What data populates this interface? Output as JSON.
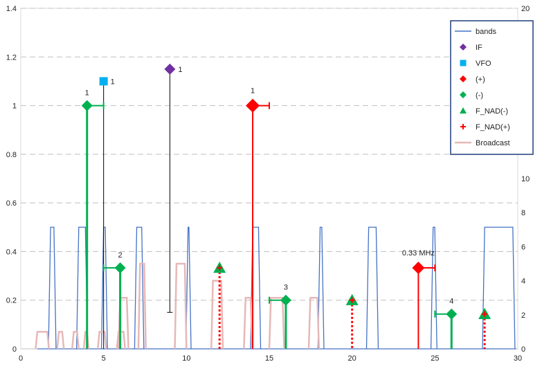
{
  "chart_data": {
    "type": "line",
    "x_axis": {
      "min": 0,
      "max": 30,
      "ticks": [
        0,
        5,
        10,
        15,
        20,
        25,
        30
      ]
    },
    "y_left": {
      "min": 0,
      "max": 1.4,
      "ticks": [
        0,
        0.2,
        0.4,
        0.6,
        0.8,
        1,
        1.2,
        1.4
      ]
    },
    "y_right": {
      "min": 0,
      "max": 20,
      "ticks": [
        0,
        2,
        4,
        6,
        8,
        10,
        12,
        14,
        16,
        18,
        20
      ]
    },
    "grid": "horizontal dashed",
    "legend_position": "top-right",
    "colors": {
      "bands": "#4472c4",
      "IF": "#7030a0",
      "VFO": "#00b0f0",
      "plus": "#ff0000",
      "minus": "#00b050",
      "broadcast": "#e6b8b7",
      "fnad_plus": "#ff0000"
    },
    "legend": [
      {
        "label": "bands",
        "marker": "line",
        "color": "#4472c4"
      },
      {
        "label": "IF",
        "marker": "diamond",
        "color": "#7030a0"
      },
      {
        "label": "VFO",
        "marker": "square",
        "color": "#00b0f0"
      },
      {
        "label": "(+)",
        "marker": "diamond",
        "color": "#ff0000"
      },
      {
        "label": "(-)",
        "marker": "diamond",
        "color": "#00b050"
      },
      {
        "label": "F_NAD(-)",
        "marker": "triangle",
        "color": "#00b050"
      },
      {
        "label": "F_NAD(+)",
        "marker": "plus",
        "color": "#ff0000"
      },
      {
        "label": "Broadcast",
        "marker": "line",
        "color": "#e6b8b7"
      }
    ],
    "bands": [
      {
        "start": 1.8,
        "end": 2.0
      },
      {
        "start": 3.5,
        "end": 3.9
      },
      {
        "start": 5.0,
        "end": 5.1
      },
      {
        "start": 7.0,
        "end": 7.3
      },
      {
        "start": 10.1,
        "end": 10.15
      },
      {
        "start": 14.0,
        "end": 14.35
      },
      {
        "start": 18.07,
        "end": 18.17
      },
      {
        "start": 21.0,
        "end": 21.45
      },
      {
        "start": 24.89,
        "end": 24.99
      },
      {
        "start": 28.0,
        "end": 29.7
      }
    ],
    "bands_level": 0.5,
    "broadcast": [
      {
        "start": 1.0,
        "end": 1.6,
        "level": 0.07
      },
      {
        "start": 2.3,
        "end": 2.5,
        "level": 0.07
      },
      {
        "start": 3.2,
        "end": 3.4,
        "level": 0.07
      },
      {
        "start": 3.9,
        "end": 4.0,
        "level": 0.07
      },
      {
        "start": 4.75,
        "end": 5.06,
        "level": 0.07
      },
      {
        "start": 5.9,
        "end": 6.2,
        "level": 0.07
      },
      {
        "start": 7.2,
        "end": 7.45,
        "level": 0.35
      },
      {
        "start": 9.4,
        "end": 9.9,
        "level": 0.35
      },
      {
        "start": 11.6,
        "end": 12.1,
        "level": 0.28
      },
      {
        "start": 13.57,
        "end": 13.87,
        "level": 0.21
      },
      {
        "start": 15.1,
        "end": 15.8,
        "level": 0.21
      },
      {
        "start": 17.48,
        "end": 17.9,
        "level": 0.21
      },
      {
        "start": 6.0,
        "end": 6.4,
        "level": 0.21
      }
    ],
    "series_points": {
      "IF": [
        {
          "x": 9,
          "y": 1.15,
          "low": 0.15,
          "label": "1"
        }
      ],
      "VFO": [
        {
          "x": 5,
          "y": 1.1,
          "low": 0.0,
          "label": "1"
        }
      ],
      "plus": [
        {
          "x": 14,
          "y": 1.0,
          "err_x": 1.0,
          "label": "1"
        },
        {
          "x": 24,
          "y": 0.333,
          "err_x": 1.0,
          "label": "0.33 MHz"
        }
      ],
      "minus": [
        {
          "x": 4,
          "y": 1.0,
          "err_x": 1.0,
          "label": "1"
        },
        {
          "x": 6,
          "y": 0.333,
          "err_x": -1.0,
          "label": "2"
        },
        {
          "x": 16,
          "y": 0.2,
          "err_x": -1.0,
          "label": "3"
        },
        {
          "x": 26,
          "y": 0.143,
          "err_x": -1.0,
          "label": "4"
        }
      ],
      "fnad_minus": [
        {
          "x": 12,
          "y": 0.333
        },
        {
          "x": 20,
          "y": 0.2
        },
        {
          "x": 28,
          "y": 0.143
        }
      ],
      "fnad_plus": [
        {
          "x": 12,
          "y": 0.333
        },
        {
          "x": 20,
          "y": 0.2
        },
        {
          "x": 28,
          "y": 0.143
        }
      ]
    }
  }
}
